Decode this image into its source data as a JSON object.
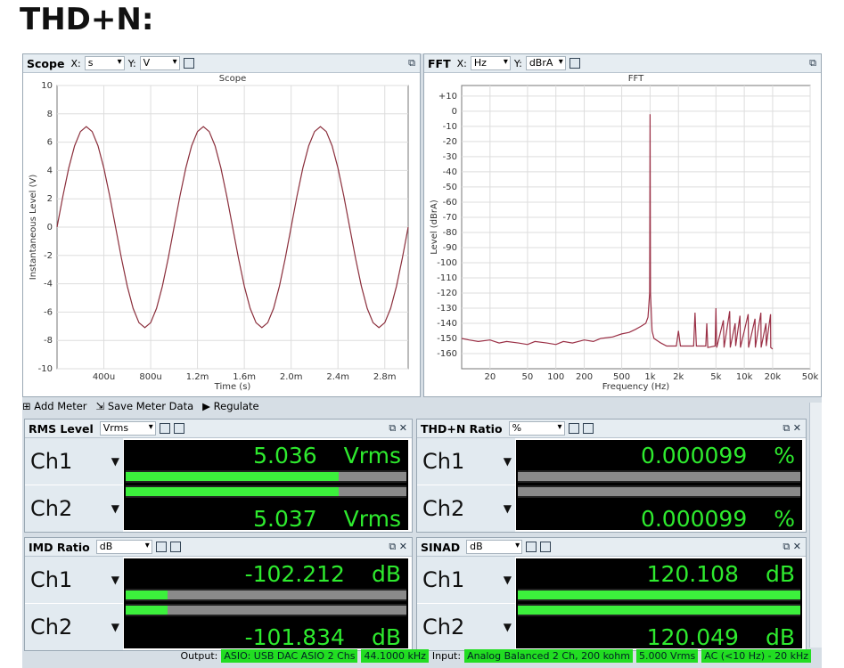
{
  "title": "THD+N:",
  "panels": [
    {
      "name": "Scope",
      "x_label": "X:",
      "x_unit": "s",
      "y_label": "Y:",
      "y_unit": "V"
    },
    {
      "name": "FFT",
      "x_label": "X:",
      "x_unit": "Hz",
      "y_label": "Y:",
      "y_unit": "dBrA"
    }
  ],
  "chart_data": [
    {
      "type": "line",
      "title": "Scope",
      "xlabel": "Time (s)",
      "ylabel": "Instantaneous Level (V)",
      "color": "#8b2f3c",
      "grid": true,
      "xlim": [
        0,
        0.003
      ],
      "ylim": [
        -10,
        10
      ],
      "xticks": [
        {
          "value": 0.0004,
          "label": "400u"
        },
        {
          "value": 0.0008,
          "label": "800u"
        },
        {
          "value": 0.0012,
          "label": "1.2m"
        },
        {
          "value": 0.0016,
          "label": "1.6m"
        },
        {
          "value": 0.002,
          "label": "2.0m"
        },
        {
          "value": 0.0024,
          "label": "2.4m"
        },
        {
          "value": 0.0028,
          "label": "2.8m"
        }
      ],
      "yticks": [
        -10,
        -8,
        -6,
        -4,
        -2,
        0,
        2,
        4,
        6,
        8,
        10
      ],
      "x": [
        0,
        5e-05,
        0.0001,
        0.00015,
        0.0002,
        0.00025,
        0.0003,
        0.00035,
        0.0004,
        0.00045,
        0.0005,
        0.00055,
        0.0006,
        0.00065,
        0.0007,
        0.00075,
        0.0008,
        0.00085,
        0.0009,
        0.00095,
        0.001,
        0.00105,
        0.0011,
        0.00115,
        0.0012,
        0.00125,
        0.0013,
        0.00135,
        0.0014,
        0.00145,
        0.0015,
        0.00155,
        0.0016,
        0.00165,
        0.0017,
        0.00175,
        0.0018,
        0.00185,
        0.0019,
        0.00195,
        0.002,
        0.00205,
        0.0021,
        0.00215,
        0.0022,
        0.00225,
        0.0023,
        0.00235,
        0.0024,
        0.00245,
        0.0025,
        0.00255,
        0.0026,
        0.00265,
        0.0027,
        0.00275,
        0.0028,
        0.00285,
        0.0029,
        0.00295,
        0.003
      ],
      "values": [
        0,
        2.19,
        4.17,
        5.74,
        6.75,
        7.1,
        6.75,
        5.74,
        4.17,
        2.19,
        0,
        -2.19,
        -4.17,
        -5.74,
        -6.75,
        -7.1,
        -6.75,
        -5.74,
        -4.17,
        -2.19,
        0,
        2.19,
        4.17,
        5.74,
        6.75,
        7.1,
        6.75,
        5.74,
        4.17,
        2.19,
        0,
        -2.19,
        -4.17,
        -5.74,
        -6.75,
        -7.1,
        -6.75,
        -5.74,
        -4.17,
        -2.19,
        0,
        2.19,
        4.17,
        5.74,
        6.75,
        7.1,
        6.75,
        5.74,
        4.17,
        2.19,
        0,
        -2.19,
        -4.17,
        -5.74,
        -6.75,
        -7.1,
        -6.75,
        -5.74,
        -4.17,
        -2.19,
        0
      ]
    },
    {
      "type": "line",
      "title": "FFT",
      "xlabel": "Frequency (Hz)",
      "ylabel": "Level (dBrA)",
      "color": "#9a2f45",
      "grid": true,
      "xscale": "log",
      "xlim": [
        10,
        50000
      ],
      "ylim": [
        -170,
        17
      ],
      "xticks": [
        20,
        50,
        100,
        200,
        500,
        {
          "value": 1000,
          "label": "1k"
        },
        {
          "value": 2000,
          "label": "2k"
        },
        {
          "value": 5000,
          "label": "5k"
        },
        {
          "value": 10000,
          "label": "10k"
        },
        {
          "value": 20000,
          "label": "20k"
        },
        {
          "value": 50000,
          "label": "50k"
        }
      ],
      "yticks": [
        {
          "value": 10,
          "label": "+10"
        },
        0,
        -10,
        -20,
        -30,
        -40,
        -50,
        -60,
        -70,
        -80,
        -90,
        -100,
        -110,
        -120,
        -130,
        -140,
        -150,
        -160
      ],
      "x": [
        10,
        12,
        15,
        20,
        25,
        30,
        40,
        50,
        60,
        80,
        100,
        120,
        150,
        200,
        250,
        300,
        400,
        500,
        600,
        700,
        800,
        900,
        950,
        990,
        1000,
        1010,
        1050,
        1100,
        1300,
        1500,
        1900,
        2000,
        2100,
        2900,
        3000,
        3100,
        3900,
        4000,
        4100,
        4900,
        5000,
        5100,
        6000,
        6100,
        7000,
        7100,
        8000,
        8100,
        9000,
        9100,
        11000,
        11100,
        13000,
        13100,
        15000,
        15100,
        17000,
        17100,
        19000,
        19100,
        20000
      ],
      "values": [
        -150,
        -151,
        -152,
        -151,
        -153,
        -152,
        -153,
        -154,
        -152,
        -153,
        -154,
        -152,
        -153,
        -151,
        -152,
        -150,
        -149,
        -147,
        -146,
        -144,
        -142,
        -140,
        -136,
        -120,
        -2,
        -120,
        -145,
        -150,
        -153,
        -155,
        -155,
        -145,
        -155,
        -155,
        -133,
        -155,
        -155,
        -140,
        -156,
        -155,
        -130,
        -156,
        -138,
        -156,
        -132,
        -156,
        -140,
        -155,
        -135,
        -156,
        -134,
        -156,
        -137,
        -156,
        -133,
        -156,
        -140,
        -155,
        -134,
        -156,
        -157
      ]
    }
  ],
  "toolbar": [
    "Add Meter",
    "Save Meter Data",
    "Regulate"
  ],
  "meters": [
    {
      "title": "RMS Level",
      "unit": "Vrms",
      "channels": [
        {
          "name": "Ch1",
          "value": 5.036
        },
        {
          "name": "Ch2",
          "value": 5.037
        }
      ]
    },
    {
      "title": "THD+N Ratio",
      "unit": "%",
      "channels": [
        {
          "name": "Ch1",
          "value": 9.9e-05
        },
        {
          "name": "Ch2",
          "value": 9.9e-05
        }
      ]
    },
    {
      "title": "IMD Ratio",
      "unit": "dB",
      "channels": [
        {
          "name": "Ch1",
          "value": -102.212
        },
        {
          "name": "Ch2",
          "value": -101.834
        }
      ]
    },
    {
      "title": "SINAD",
      "unit": "dB",
      "channels": [
        {
          "name": "Ch1",
          "value": 120.108
        },
        {
          "name": "Ch2",
          "value": 120.049
        }
      ]
    }
  ],
  "status": {
    "output_label": "Output:",
    "output": [
      "ASIO: USB DAC ASIO 2 Chs",
      "44.1000 kHz"
    ],
    "input_label": "Input:",
    "input": [
      "Analog Balanced 2 Ch, 200 kohm",
      "5.000 Vrms",
      "AC (<10 Hz) - 20 kHz"
    ]
  }
}
